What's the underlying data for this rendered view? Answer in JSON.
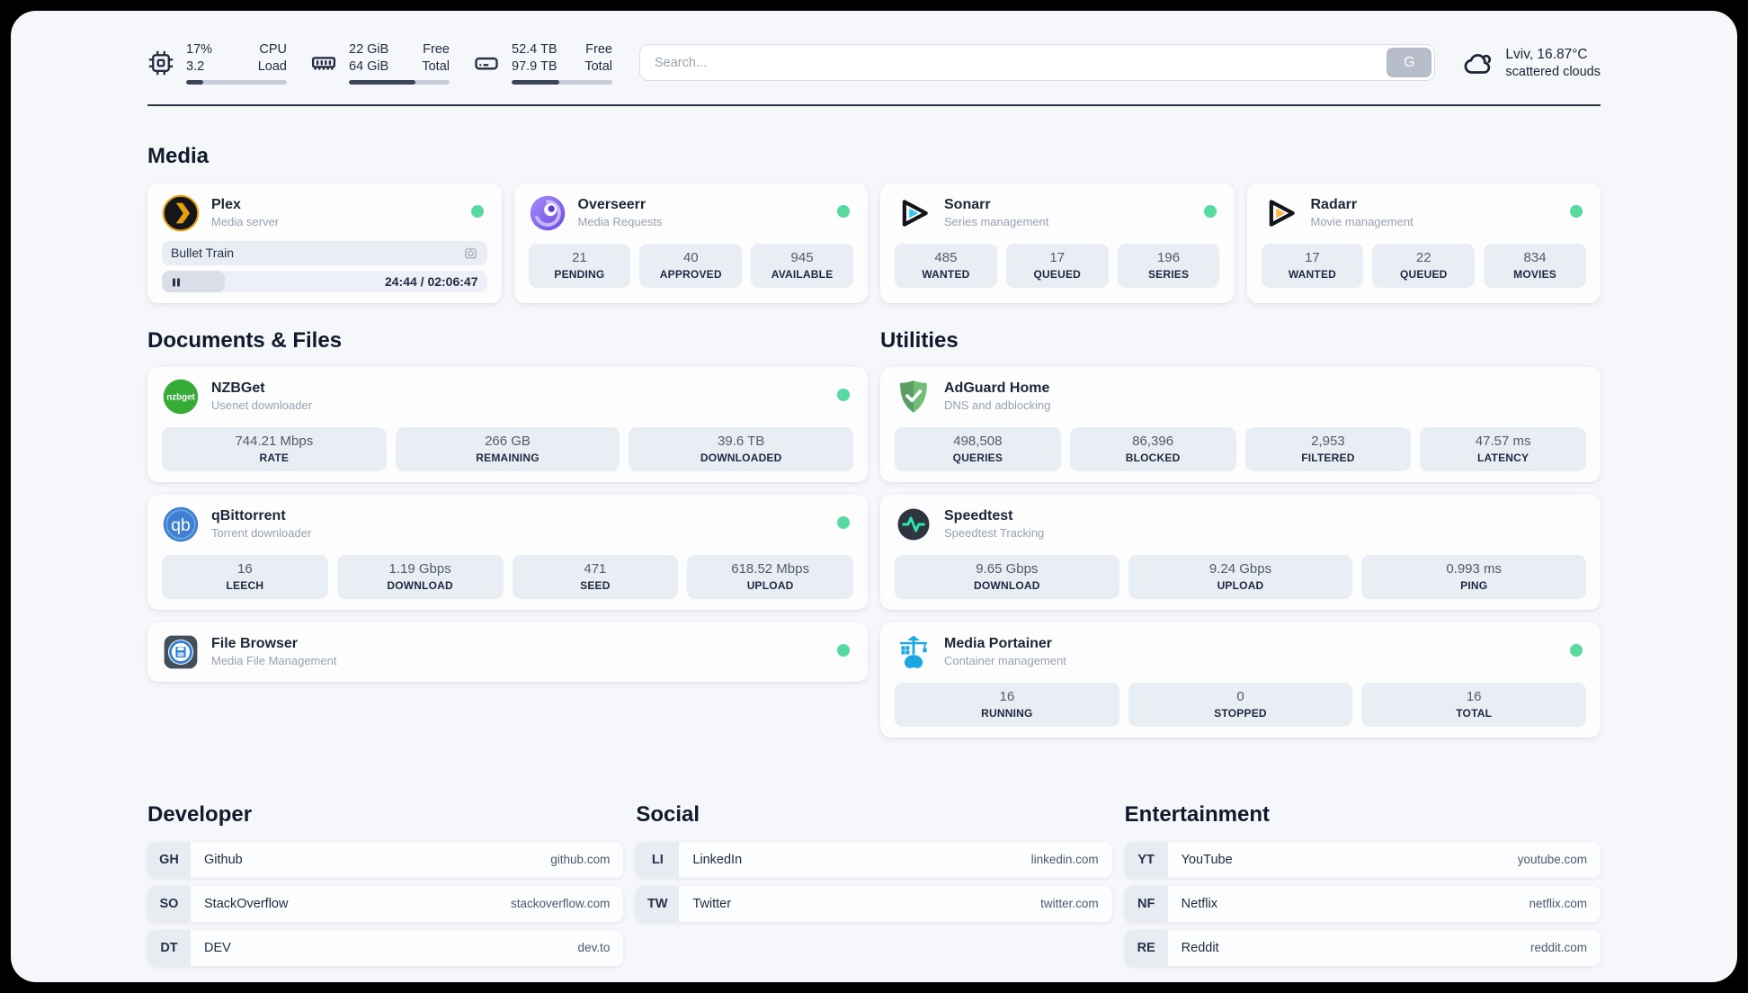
{
  "header": {
    "stats": [
      {
        "name": "cpu",
        "v1": "17%",
        "l1": "CPU",
        "v2": "3.2",
        "l2": "Load",
        "progress_pct": 17
      },
      {
        "name": "memory",
        "v1": "22 GiB",
        "l1": "Free",
        "v2": "64 GiB",
        "l2": "Total",
        "progress_pct": 66
      },
      {
        "name": "storage",
        "v1": "52.4 TB",
        "l1": "Free",
        "v2": "97.9 TB",
        "l2": "Total",
        "progress_pct": 47
      }
    ],
    "search": {
      "placeholder": "Search...",
      "button_label": "G"
    },
    "weather": {
      "location": "Lviv, 16.87°C",
      "condition": "scattered clouds"
    }
  },
  "sections": {
    "media": "Media",
    "documents": "Documents & Files",
    "utilities": "Utilities",
    "developer": "Developer",
    "social": "Social",
    "entertainment": "Entertainment"
  },
  "apps": {
    "plex": {
      "name": "Plex",
      "subtitle": "Media server",
      "now_playing": "Bullet Train",
      "time_label": "24:44 / 02:06:47",
      "progress_pct": 19.5
    },
    "overseerr": {
      "name": "Overseerr",
      "subtitle": "Media Requests",
      "stats": [
        {
          "value": "21",
          "label": "PENDING"
        },
        {
          "value": "40",
          "label": "APPROVED"
        },
        {
          "value": "945",
          "label": "AVAILABLE"
        }
      ]
    },
    "sonarr": {
      "name": "Sonarr",
      "subtitle": "Series management",
      "stats": [
        {
          "value": "485",
          "label": "WANTED"
        },
        {
          "value": "17",
          "label": "QUEUED"
        },
        {
          "value": "196",
          "label": "SERIES"
        }
      ]
    },
    "radarr": {
      "name": "Radarr",
      "subtitle": "Movie management",
      "stats": [
        {
          "value": "17",
          "label": "WANTED"
        },
        {
          "value": "22",
          "label": "QUEUED"
        },
        {
          "value": "834",
          "label": "MOVIES"
        }
      ]
    },
    "nzbget": {
      "name": "NZBGet",
      "subtitle": "Usenet downloader",
      "stats": [
        {
          "value": "744.21 Mbps",
          "label": "RATE"
        },
        {
          "value": "266 GB",
          "label": "REMAINING"
        },
        {
          "value": "39.6 TB",
          "label": "DOWNLOADED"
        }
      ]
    },
    "qbittorrent": {
      "name": "qBittorrent",
      "subtitle": "Torrent downloader",
      "stats": [
        {
          "value": "16",
          "label": "LEECH"
        },
        {
          "value": "1.19 Gbps",
          "label": "DOWNLOAD"
        },
        {
          "value": "471",
          "label": "SEED"
        },
        {
          "value": "618.52 Mbps",
          "label": "UPLOAD"
        }
      ]
    },
    "filebrowser": {
      "name": "File Browser",
      "subtitle": "Media File Management"
    },
    "adguard": {
      "name": "AdGuard Home",
      "subtitle": "DNS and adblocking",
      "stats": [
        {
          "value": "498,508",
          "label": "QUERIES"
        },
        {
          "value": "86,396",
          "label": "BLOCKED"
        },
        {
          "value": "2,953",
          "label": "FILTERED"
        },
        {
          "value": "47.57 ms",
          "label": "LATENCY"
        }
      ]
    },
    "speedtest": {
      "name": "Speedtest",
      "subtitle": "Speedtest Tracking",
      "stats": [
        {
          "value": "9.65 Gbps",
          "label": "DOWNLOAD"
        },
        {
          "value": "9.24 Gbps",
          "label": "UPLOAD"
        },
        {
          "value": "0.993 ms",
          "label": "PING"
        }
      ]
    },
    "portainer": {
      "name": "Media Portainer",
      "subtitle": "Container management",
      "stats": [
        {
          "value": "16",
          "label": "RUNNING"
        },
        {
          "value": "0",
          "label": "STOPPED"
        },
        {
          "value": "16",
          "label": "TOTAL"
        }
      ]
    }
  },
  "bookmarks": {
    "developer": [
      {
        "abbr": "GH",
        "name": "Github",
        "url": "github.com"
      },
      {
        "abbr": "SO",
        "name": "StackOverflow",
        "url": "stackoverflow.com"
      },
      {
        "abbr": "DT",
        "name": "DEV",
        "url": "dev.to"
      }
    ],
    "social": [
      {
        "abbr": "LI",
        "name": "LinkedIn",
        "url": "linkedin.com"
      },
      {
        "abbr": "TW",
        "name": "Twitter",
        "url": "twitter.com"
      }
    ],
    "entertainment": [
      {
        "abbr": "YT",
        "name": "YouTube",
        "url": "youtube.com"
      },
      {
        "abbr": "NF",
        "name": "Netflix",
        "url": "netflix.com"
      },
      {
        "abbr": "RE",
        "name": "Reddit",
        "url": "reddit.com"
      }
    ]
  },
  "colors": {
    "status_online": "#58d9a0",
    "progress_fill": "#3a455c",
    "tile_bg": "#e9edf4"
  }
}
